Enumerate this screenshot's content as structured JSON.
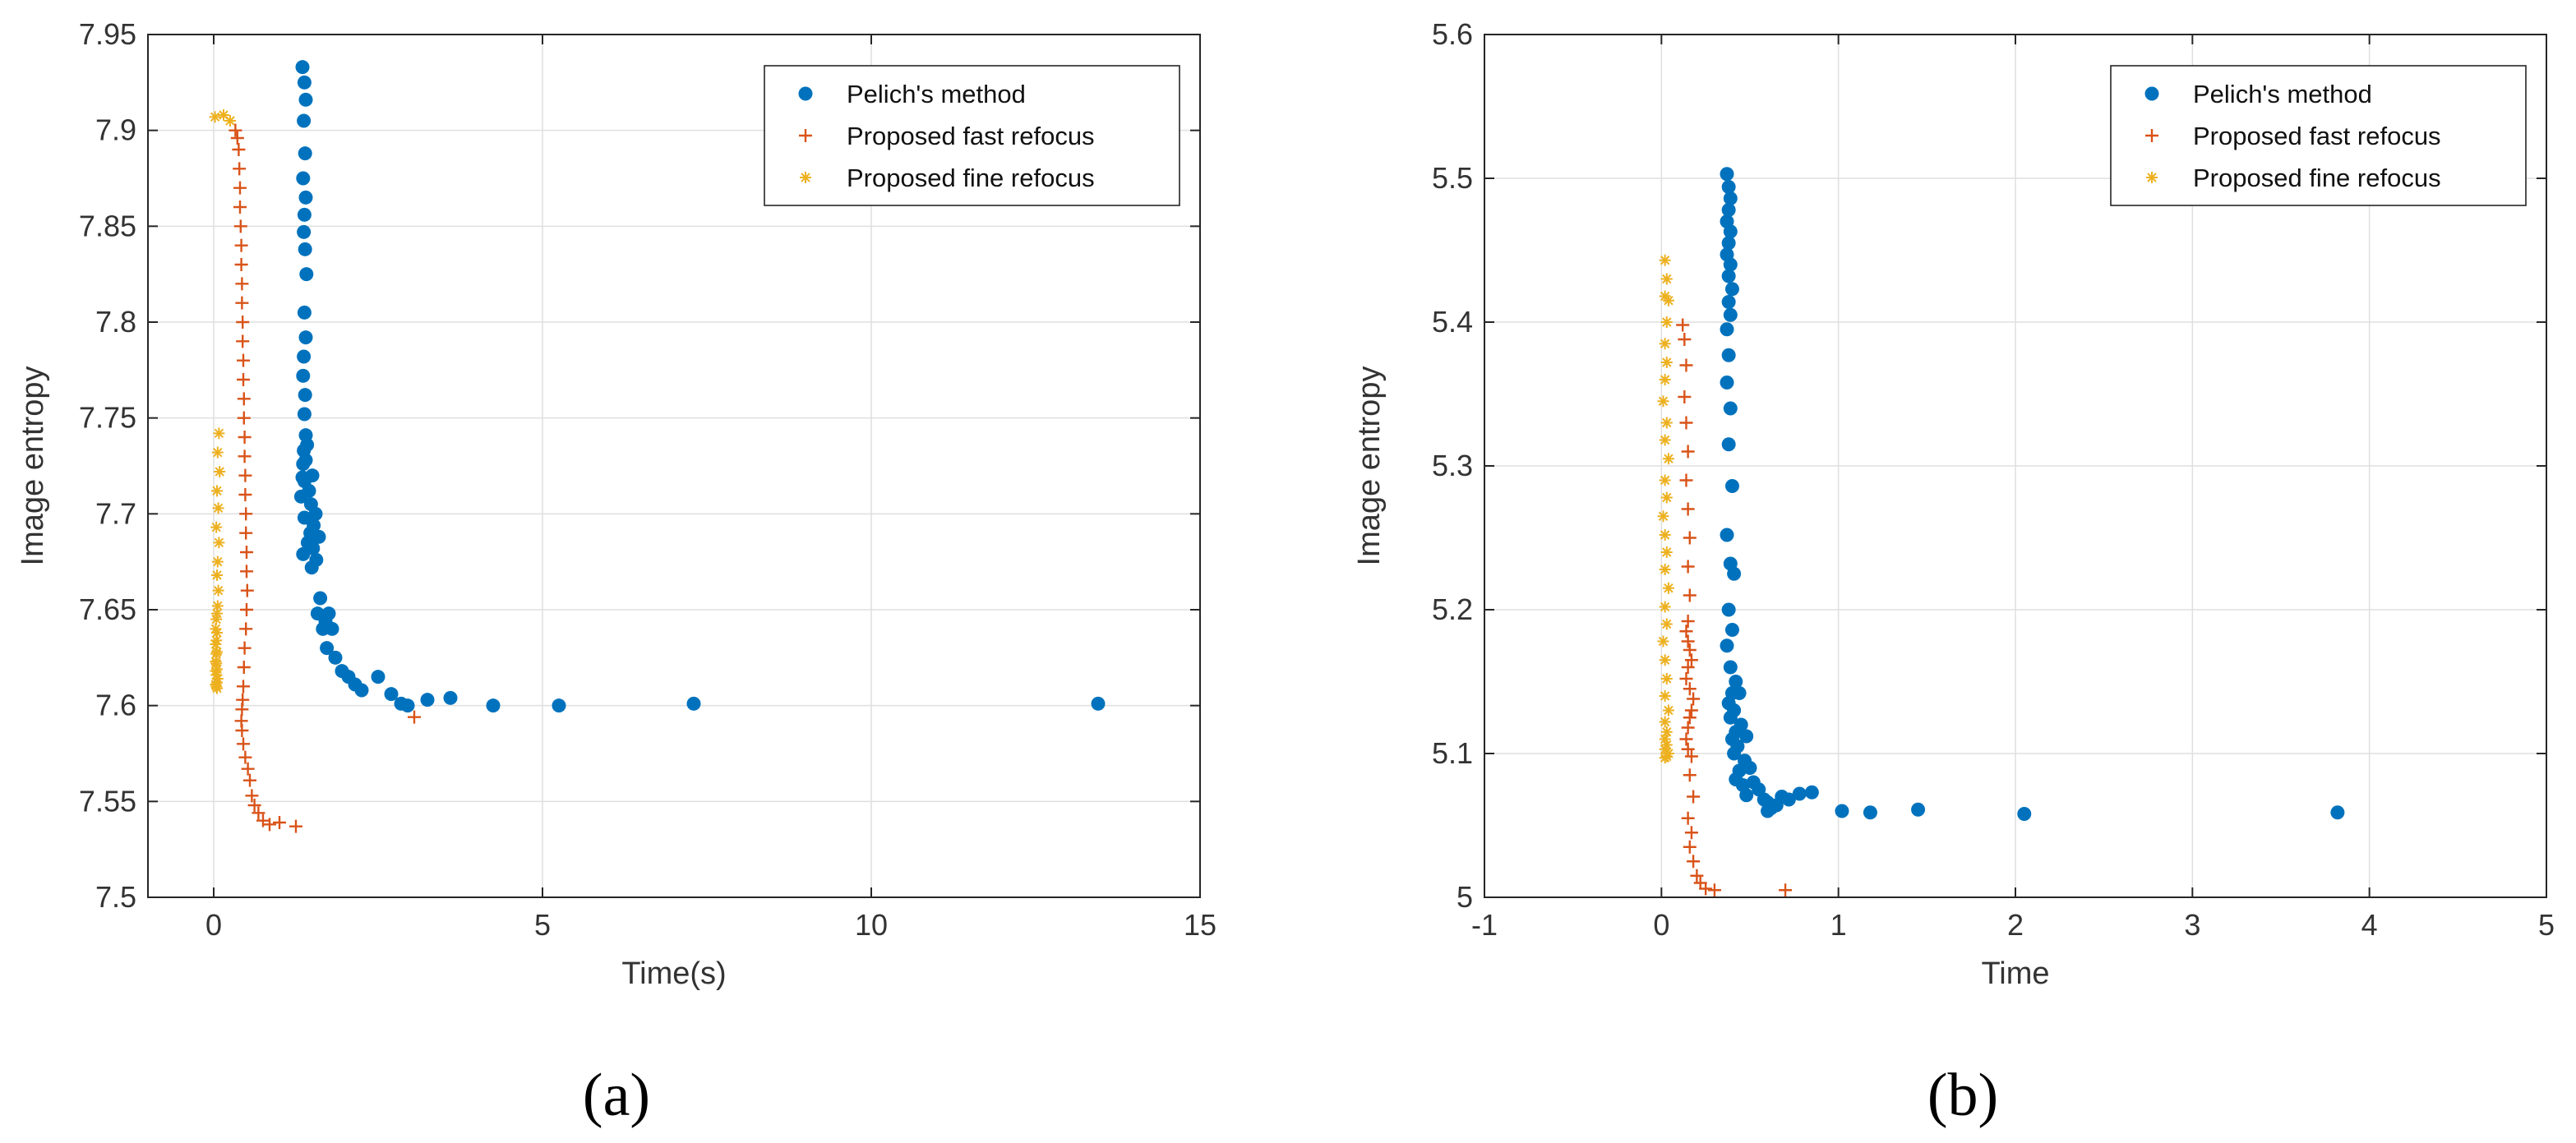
{
  "figure": {
    "panel_labels": [
      "(a)",
      "(b)"
    ]
  },
  "colors": {
    "pelich": "#0072BD",
    "fast": "#D95319",
    "fine": "#EDB120",
    "grid": "#dfdfdf",
    "axis": "#262626"
  },
  "chart_data": [
    {
      "type": "scatter",
      "panel": "(a)",
      "xlabel": "Time(s)",
      "ylabel": "Image entropy",
      "xlim": [
        -1,
        15
      ],
      "ylim": [
        7.5,
        7.95
      ],
      "xticks": [
        0,
        5,
        10,
        15
      ],
      "yticks": [
        7.5,
        7.55,
        7.6,
        7.65,
        7.7,
        7.75,
        7.8,
        7.85,
        7.9,
        7.95
      ],
      "grid": true,
      "legend_position": "top-right",
      "series": [
        {
          "name": "Pelich's method",
          "marker": "dot",
          "x": [
            1.35,
            1.38,
            1.4,
            1.37,
            1.39,
            1.36,
            1.4,
            1.38,
            1.37,
            1.39,
            1.41,
            1.38,
            1.4,
            1.37,
            1.36,
            1.39,
            1.38,
            1.4,
            1.37,
            1.36,
            1.42,
            1.35,
            1.4,
            1.38,
            1.45,
            1.5,
            1.33,
            1.48,
            1.55,
            1.38,
            1.52,
            1.47,
            1.6,
            1.43,
            1.51,
            1.36,
            1.56,
            1.49,
            1.62,
            1.58,
            1.7,
            1.66,
            1.75,
            1.8,
            1.72,
            1.85,
            1.95,
            2.05,
            2.15,
            2.25,
            2.5,
            2.7,
            2.85,
            2.95,
            3.25,
            3.6,
            4.25,
            5.25,
            7.3,
            13.45
          ],
          "y": [
            7.933,
            7.925,
            7.916,
            7.905,
            7.888,
            7.875,
            7.865,
            7.856,
            7.847,
            7.838,
            7.825,
            7.805,
            7.792,
            7.782,
            7.772,
            7.762,
            7.752,
            7.741,
            7.733,
            7.726,
            7.736,
            7.719,
            7.728,
            7.717,
            7.712,
            7.72,
            7.709,
            7.705,
            7.7,
            7.698,
            7.694,
            7.69,
            7.688,
            7.685,
            7.682,
            7.679,
            7.676,
            7.672,
            7.656,
            7.648,
            7.644,
            7.64,
            7.648,
            7.64,
            7.63,
            7.625,
            7.618,
            7.615,
            7.611,
            7.608,
            7.615,
            7.606,
            7.601,
            7.6,
            7.603,
            7.604,
            7.6,
            7.6,
            7.601,
            7.601
          ]
        },
        {
          "name": "Proposed fast refocus",
          "marker": "plus",
          "x": [
            0.33,
            0.36,
            0.38,
            0.39,
            0.4,
            0.4,
            0.41,
            0.42,
            0.42,
            0.43,
            0.43,
            0.44,
            0.44,
            0.45,
            0.45,
            0.46,
            0.46,
            0.47,
            0.47,
            0.48,
            0.48,
            0.49,
            0.49,
            0.5,
            0.5,
            0.51,
            0.5,
            0.49,
            0.47,
            0.46,
            0.45,
            0.44,
            0.43,
            0.42,
            0.43,
            0.45,
            0.48,
            0.52,
            0.55,
            0.58,
            0.62,
            0.68,
            0.75,
            0.85,
            1.0,
            1.25,
            3.05
          ],
          "y": [
            7.9,
            7.896,
            7.89,
            7.88,
            7.87,
            7.86,
            7.85,
            7.84,
            7.83,
            7.82,
            7.81,
            7.8,
            7.79,
            7.78,
            7.77,
            7.76,
            7.75,
            7.74,
            7.73,
            7.72,
            7.71,
            7.7,
            7.69,
            7.68,
            7.67,
            7.66,
            7.65,
            7.64,
            7.63,
            7.62,
            7.61,
            7.603,
            7.598,
            7.592,
            7.587,
            7.58,
            7.573,
            7.567,
            7.561,
            7.553,
            7.548,
            7.544,
            7.54,
            7.538,
            7.539,
            7.537,
            7.594
          ]
        },
        {
          "name": "Proposed fine refocus",
          "marker": "star",
          "x": [
            0.02,
            0.15,
            0.25,
            0.08,
            0.06,
            0.09,
            0.05,
            0.07,
            0.04,
            0.08,
            0.06,
            0.05,
            0.07,
            0.06,
            0.04,
            0.05,
            0.03,
            0.04,
            0.03,
            0.05,
            0.04,
            0.06,
            0.05,
            0.03,
            0.04,
            0.05,
            0.03,
            0.04,
            0.05,
            0.04,
            0.03,
            0.05
          ],
          "y": [
            7.907,
            7.908,
            7.905,
            7.742,
            7.732,
            7.722,
            7.712,
            7.703,
            7.693,
            7.685,
            7.675,
            7.668,
            7.66,
            7.652,
            7.645,
            7.638,
            7.632,
            7.627,
            7.623,
            7.619,
            7.616,
            7.614,
            7.612,
            7.611,
            7.61,
            7.609,
            7.618,
            7.622,
            7.628,
            7.634,
            7.64,
            7.648
          ]
        }
      ]
    },
    {
      "type": "scatter",
      "panel": "(b)",
      "xlabel": "Time",
      "ylabel": "Image entropy",
      "xlim": [
        -1,
        5
      ],
      "ylim": [
        5,
        5.6
      ],
      "xticks": [
        -1,
        0,
        1,
        2,
        3,
        4,
        5
      ],
      "yticks": [
        5,
        5.1,
        5.2,
        5.3,
        5.4,
        5.5,
        5.6
      ],
      "grid": true,
      "legend_position": "top-right",
      "series": [
        {
          "name": "Pelich's method",
          "marker": "dot",
          "x": [
            0.37,
            0.38,
            0.39,
            0.38,
            0.37,
            0.39,
            0.38,
            0.37,
            0.39,
            0.38,
            0.4,
            0.38,
            0.39,
            0.37,
            0.38,
            0.37,
            0.39,
            0.38,
            0.4,
            0.37,
            0.39,
            0.41,
            0.38,
            0.4,
            0.37,
            0.39,
            0.42,
            0.4,
            0.38,
            0.44,
            0.41,
            0.39,
            0.45,
            0.42,
            0.4,
            0.48,
            0.43,
            0.41,
            0.47,
            0.5,
            0.44,
            0.42,
            0.52,
            0.46,
            0.55,
            0.48,
            0.58,
            0.6,
            0.62,
            0.65,
            0.68,
            0.72,
            0.78,
            0.85,
            0.6,
            1.02,
            1.18,
            1.45,
            2.05,
            3.82
          ],
          "y": [
            5.503,
            5.494,
            5.486,
            5.478,
            5.47,
            5.463,
            5.455,
            5.447,
            5.44,
            5.432,
            5.423,
            5.414,
            5.405,
            5.395,
            5.377,
            5.358,
            5.34,
            5.315,
            5.286,
            5.252,
            5.232,
            5.225,
            5.2,
            5.186,
            5.175,
            5.16,
            5.15,
            5.142,
            5.135,
            5.142,
            5.13,
            5.125,
            5.12,
            5.115,
            5.11,
            5.112,
            5.105,
            5.1,
            5.095,
            5.09,
            5.088,
            5.082,
            5.08,
            5.078,
            5.075,
            5.071,
            5.068,
            5.066,
            5.062,
            5.064,
            5.07,
            5.068,
            5.072,
            5.073,
            5.06,
            5.06,
            5.059,
            5.061,
            5.058,
            5.059
          ]
        },
        {
          "name": "Proposed fast refocus",
          "marker": "plus",
          "x": [
            0.12,
            0.13,
            0.14,
            0.13,
            0.14,
            0.15,
            0.14,
            0.15,
            0.16,
            0.15,
            0.16,
            0.15,
            0.14,
            0.15,
            0.16,
            0.17,
            0.15,
            0.14,
            0.16,
            0.18,
            0.17,
            0.16,
            0.15,
            0.14,
            0.15,
            0.17,
            0.16,
            0.18,
            0.15,
            0.17,
            0.16,
            0.18,
            0.2,
            0.22,
            0.25,
            0.3,
            0.7
          ],
          "y": [
            5.398,
            5.388,
            5.37,
            5.348,
            5.33,
            5.31,
            5.29,
            5.27,
            5.25,
            5.23,
            5.21,
            5.192,
            5.185,
            5.178,
            5.172,
            5.165,
            5.16,
            5.152,
            5.145,
            5.138,
            5.13,
            5.125,
            5.118,
            5.11,
            5.103,
            5.098,
            5.085,
            5.07,
            5.055,
            5.045,
            5.035,
            5.025,
            5.015,
            5.01,
            5.006,
            5.005,
            5.005
          ]
        },
        {
          "name": "Proposed fine refocus",
          "marker": "star",
          "x": [
            0.02,
            0.03,
            0.02,
            0.04,
            0.03,
            0.02,
            0.03,
            0.02,
            0.01,
            0.03,
            0.02,
            0.04,
            0.02,
            0.03,
            0.01,
            0.02,
            0.03,
            0.02,
            0.04,
            0.02,
            0.03,
            0.01,
            0.02,
            0.03,
            0.02,
            0.04,
            0.02,
            0.03,
            0.02,
            0.03,
            0.02,
            0.04,
            0.03,
            0.02
          ],
          "y": [
            5.443,
            5.43,
            5.418,
            5.415,
            5.4,
            5.385,
            5.372,
            5.36,
            5.345,
            5.33,
            5.318,
            5.305,
            5.29,
            5.278,
            5.265,
            5.252,
            5.24,
            5.228,
            5.215,
            5.202,
            5.19,
            5.178,
            5.165,
            5.152,
            5.14,
            5.13,
            5.122,
            5.115,
            5.11,
            5.106,
            5.103,
            5.1,
            5.098,
            5.097
          ]
        }
      ]
    }
  ]
}
